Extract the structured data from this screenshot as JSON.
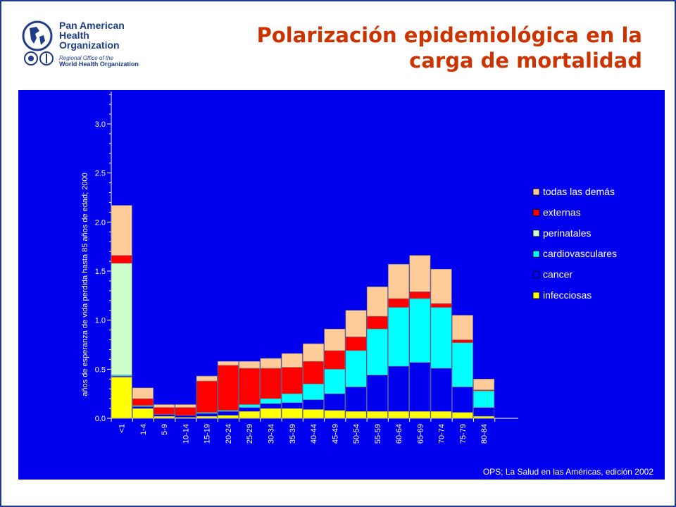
{
  "header": {
    "org_name": "Pan American\nHealth\nOrganization",
    "org_sub_1": "Regional Office of the",
    "org_sub_2": "World Health Organization",
    "title_line_1": "Polarización epidemiológica en la",
    "title_line_2": "carga de mortalidad"
  },
  "colors": {
    "panel_bg": "#0000ee",
    "title": "#cc3300",
    "brand": "#1f3c88"
  },
  "source": "OPS; La Salud en las Américas, edición 2002",
  "chart_data": {
    "type": "bar",
    "stacked": true,
    "ylabel": "años de esperanza de vida perdida hasta 85 años de edad; 2000",
    "xlabel": "",
    "title": "",
    "ylim": [
      0,
      3.3
    ],
    "yticks": [
      "0.0",
      "0.5",
      "1.0",
      "1.5",
      "2.0",
      "2.5",
      "3.0"
    ],
    "legend_position": "right",
    "categories": [
      "<1",
      "1-4",
      "5-9",
      "10-14",
      "15-19",
      "20-24",
      "25-29",
      "30-34",
      "35-39",
      "40-44",
      "45-49",
      "50-54",
      "55-59",
      "60-64",
      "65-69",
      "70-74",
      "75-79",
      "80-84"
    ],
    "series": [
      {
        "name": "infecciosas",
        "color": "#ffff00",
        "values": [
          0.42,
          0.1,
          0.02,
          0.01,
          0.02,
          0.03,
          0.07,
          0.1,
          0.1,
          0.09,
          0.08,
          0.07,
          0.07,
          0.07,
          0.07,
          0.07,
          0.06,
          0.02
        ]
      },
      {
        "name": "cancer",
        "color": "#0000ee",
        "values": [
          0.01,
          0.02,
          0.02,
          0.02,
          0.03,
          0.04,
          0.04,
          0.05,
          0.06,
          0.1,
          0.17,
          0.25,
          0.37,
          0.46,
          0.5,
          0.44,
          0.26,
          0.09
        ]
      },
      {
        "name": "cardiovasculares",
        "color": "#00ffff",
        "values": [
          0.01,
          0.01,
          0.0,
          0.0,
          0.01,
          0.01,
          0.03,
          0.05,
          0.09,
          0.16,
          0.25,
          0.37,
          0.47,
          0.6,
          0.65,
          0.62,
          0.45,
          0.17
        ]
      },
      {
        "name": "perinatales",
        "color": "#ccffcc",
        "values": [
          1.14,
          0.0,
          0.0,
          0.0,
          0.0,
          0.0,
          0.0,
          0.0,
          0.0,
          0.0,
          0.0,
          0.0,
          0.0,
          0.0,
          0.0,
          0.0,
          0.0,
          0.0
        ]
      },
      {
        "name": "externas",
        "color": "#ff0000",
        "values": [
          0.08,
          0.07,
          0.07,
          0.08,
          0.32,
          0.46,
          0.37,
          0.31,
          0.27,
          0.23,
          0.19,
          0.14,
          0.13,
          0.09,
          0.07,
          0.04,
          0.03,
          0.01
        ]
      },
      {
        "name": "todas las demás",
        "color": "#ffcc99",
        "values": [
          0.51,
          0.11,
          0.03,
          0.03,
          0.05,
          0.04,
          0.07,
          0.1,
          0.14,
          0.18,
          0.22,
          0.27,
          0.3,
          0.35,
          0.37,
          0.35,
          0.25,
          0.11
        ]
      }
    ],
    "legend_order": [
      "todas las demás",
      "externas",
      "perinatales",
      "cardiovasculares",
      "cancer",
      "infecciosas"
    ]
  }
}
